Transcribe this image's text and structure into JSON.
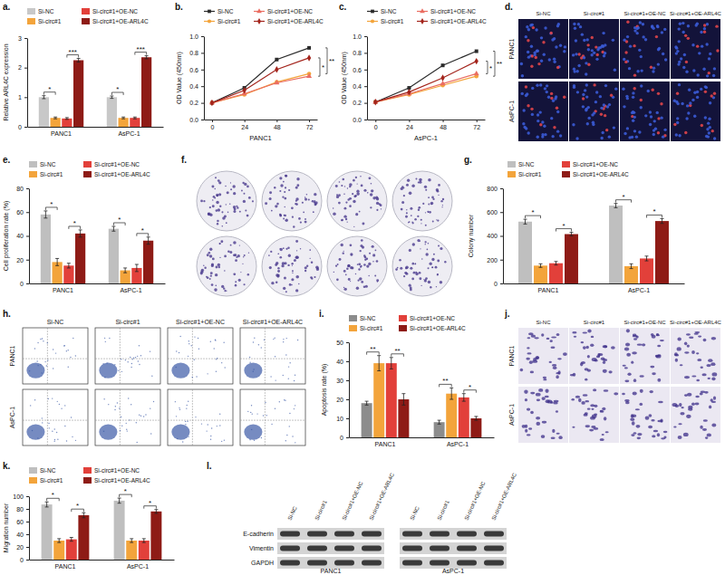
{
  "chart_data": [
    {
      "type": "bar",
      "title": "a.",
      "y_label": "Relative ARL4C expression",
      "categories": [
        "PANC1",
        "AsPC-1"
      ],
      "series": [
        {
          "name": "Si-NC",
          "color": "#c8c8c8",
          "values": [
            1.0,
            1.0
          ],
          "errors": [
            0.05,
            0.04
          ]
        },
        {
          "name": "Si-circ#1",
          "color": "#f3a43b",
          "values": [
            0.3,
            0.3
          ],
          "errors": [
            0.03,
            0.03
          ]
        },
        {
          "name": "Si-circ#1+OE-NC",
          "color": "#e2403a",
          "values": [
            0.28,
            0.3
          ],
          "errors": [
            0.03,
            0.03
          ]
        },
        {
          "name": "Si-circ#1+OE-ARL4C",
          "color": "#8e1b16",
          "values": [
            2.25,
            2.35
          ],
          "errors": [
            0.06,
            0.05
          ]
        }
      ],
      "ylim": [
        0,
        3
      ],
      "yticks": [
        0,
        1,
        2,
        3
      ],
      "legend": "top",
      "annotations": [
        {
          "text": "*",
          "category": "PANC1",
          "pair": [
            "Si-NC",
            "Si-circ#1"
          ]
        },
        {
          "text": "***",
          "category": "PANC1",
          "pair": [
            "Si-circ#1+OE-NC",
            "Si-circ#1+OE-ARL4C"
          ]
        },
        {
          "text": "*",
          "category": "AsPC-1",
          "pair": [
            "Si-NC",
            "Si-circ#1"
          ]
        },
        {
          "text": "***",
          "category": "AsPC-1",
          "pair": [
            "Si-circ#1+OE-NC",
            "Si-circ#1+OE-ARL4C"
          ]
        }
      ]
    },
    {
      "type": "line",
      "title": "b.",
      "y_label": "OD Value (450nm)",
      "x_label": "PANC1",
      "x": [
        0,
        24,
        48,
        72
      ],
      "xlim": [
        -6,
        78
      ],
      "xticks": [
        0,
        24,
        48,
        72
      ],
      "ylim": [
        0,
        1
      ],
      "yticks": [
        {
          "value": 0,
          "label": "0.0"
        },
        0.2,
        0.4,
        0.6,
        0.8,
        {
          "value": 1,
          "label": "1.0"
        }
      ],
      "series": [
        {
          "name": "Si-NC",
          "color": "#2b2b2b",
          "marker": "square",
          "values": [
            0.2,
            0.38,
            0.72,
            0.86
          ]
        },
        {
          "name": "Si-circ#1",
          "color": "#f3a43b",
          "marker": "circle",
          "values": [
            0.2,
            0.3,
            0.45,
            0.55
          ]
        },
        {
          "name": "Si-circ#1+OE-NC",
          "color": "#ea6d62",
          "marker": "triangle",
          "values": [
            0.2,
            0.31,
            0.44,
            0.52
          ]
        },
        {
          "name": "Si-circ#1+OE-ARL4C",
          "color": "#a3241c",
          "marker": "diamond",
          "values": [
            0.2,
            0.35,
            0.6,
            0.74
          ]
        }
      ],
      "legend": "top",
      "annotations": [
        {
          "text": "**",
          "pair": [
            "Si-NC",
            "Si-circ#1"
          ]
        },
        {
          "text": "*",
          "pair": [
            "Si-circ#1+OE-NC",
            "Si-circ#1+OE-ARL4C"
          ]
        }
      ]
    },
    {
      "type": "line",
      "title": "c.",
      "y_label": "OD Value (450nm)",
      "x_label": "AsPC-1",
      "x": [
        0,
        24,
        48,
        72
      ],
      "xlim": [
        -6,
        78
      ],
      "xticks": [
        0,
        24,
        48,
        72
      ],
      "ylim": [
        0,
        1
      ],
      "yticks": [
        {
          "value": 0,
          "label": "0.0"
        },
        0.2,
        0.4,
        0.6,
        0.8,
        {
          "value": 1,
          "label": "1.0"
        }
      ],
      "series": [
        {
          "name": "Si-NC",
          "color": "#2b2b2b",
          "marker": "square",
          "values": [
            0.21,
            0.38,
            0.65,
            0.82
          ]
        },
        {
          "name": "Si-circ#1",
          "color": "#f3a43b",
          "marker": "circle",
          "values": [
            0.21,
            0.3,
            0.41,
            0.52
          ]
        },
        {
          "name": "Si-circ#1+OE-NC",
          "color": "#ea6d62",
          "marker": "triangle",
          "values": [
            0.21,
            0.31,
            0.43,
            0.55
          ]
        },
        {
          "name": "Si-circ#1+OE-ARL4C",
          "color": "#a3241c",
          "marker": "diamond",
          "values": [
            0.21,
            0.33,
            0.5,
            0.7
          ]
        }
      ],
      "legend": "top",
      "annotations": [
        {
          "text": "**",
          "pair": [
            "Si-NC",
            "Si-circ#1"
          ]
        },
        {
          "text": "*",
          "pair": [
            "Si-circ#1+OE-NC",
            "Si-circ#1+OE-ARL4C"
          ]
        }
      ]
    },
    {
      "type": "bar",
      "title": "e.",
      "y_label": "Cell proliferation rate (%)",
      "categories": [
        "PANC1",
        "AsPC-1"
      ],
      "series": [
        {
          "name": "Si-NC",
          "color": "#bfbfbf",
          "values": [
            58,
            46
          ],
          "errors": [
            3,
            2
          ]
        },
        {
          "name": "Si-circ#1",
          "color": "#f3a43b",
          "values": [
            18,
            11
          ],
          "errors": [
            3,
            2
          ]
        },
        {
          "name": "Si-circ#1+OE-NC",
          "color": "#e2403a",
          "values": [
            15,
            13
          ],
          "errors": [
            2,
            3
          ]
        },
        {
          "name": "Si-circ#1+OE-ARL4C",
          "color": "#8e1b16",
          "values": [
            42,
            36
          ],
          "errors": [
            3,
            3
          ]
        }
      ],
      "ylim": [
        0,
        80
      ],
      "yticks": [
        0,
        20,
        40,
        60,
        80
      ],
      "legend": "top",
      "annotations": [
        {
          "text": "*",
          "category": "PANC1",
          "pair": [
            "Si-NC",
            "Si-circ#1"
          ]
        },
        {
          "text": "*",
          "category": "PANC1",
          "pair": [
            "Si-circ#1+OE-NC",
            "Si-circ#1+OE-ARL4C"
          ]
        },
        {
          "text": "*",
          "category": "AsPC-1",
          "pair": [
            "Si-NC",
            "Si-circ#1"
          ]
        },
        {
          "text": "*",
          "category": "AsPC-1",
          "pair": [
            "Si-circ#1+OE-NC",
            "Si-circ#1+OE-ARL4C"
          ]
        }
      ]
    },
    {
      "type": "bar",
      "title": "g.",
      "y_label": "Colony number",
      "categories": [
        "PANC1",
        "AsPC-1"
      ],
      "series": [
        {
          "name": "Si-NC",
          "color": "#bfbfbf",
          "values": [
            520,
            655
          ],
          "errors": [
            20,
            18
          ]
        },
        {
          "name": "Si-circ#1",
          "color": "#f3a43b",
          "values": [
            150,
            145
          ],
          "errors": [
            15,
            20
          ]
        },
        {
          "name": "Si-circ#1+OE-NC",
          "color": "#e2403a",
          "values": [
            170,
            210
          ],
          "errors": [
            15,
            20
          ]
        },
        {
          "name": "Si-circ#1+OE-ARL4C",
          "color": "#8e1b16",
          "values": [
            415,
            525
          ],
          "errors": [
            15,
            20
          ]
        }
      ],
      "ylim": [
        0,
        800
      ],
      "yticks": [
        0,
        200,
        400,
        600,
        800
      ],
      "legend": "top",
      "annotations": [
        {
          "text": "*",
          "category": "PANC1",
          "pair": [
            "Si-NC",
            "Si-circ#1"
          ]
        },
        {
          "text": "*",
          "category": "PANC1",
          "pair": [
            "Si-circ#1+OE-NC",
            "Si-circ#1+OE-ARL4C"
          ]
        },
        {
          "text": "*",
          "category": "AsPC-1",
          "pair": [
            "Si-NC",
            "Si-circ#1"
          ]
        },
        {
          "text": "*",
          "category": "AsPC-1",
          "pair": [
            "Si-circ#1+OE-NC",
            "Si-circ#1+OE-ARL4C"
          ]
        }
      ]
    },
    {
      "type": "bar",
      "title": "i.",
      "y_label": "Apoptosis rate (%)",
      "categories": [
        "PANC1",
        "AsPC-1"
      ],
      "series": [
        {
          "name": "Si-NC",
          "color": "#8c8c8c",
          "values": [
            18,
            8
          ],
          "errors": [
            1,
            1
          ]
        },
        {
          "name": "Si-circ#1",
          "color": "#f3a43b",
          "values": [
            39,
            23
          ],
          "errors": [
            4,
            3
          ]
        },
        {
          "name": "Si-circ#1+OE-NC",
          "color": "#e2403a",
          "values": [
            39,
            21
          ],
          "errors": [
            3,
            2
          ]
        },
        {
          "name": "Si-circ#1+OE-ARL4C",
          "color": "#8e1b16",
          "values": [
            20,
            10
          ],
          "errors": [
            3,
            1
          ]
        }
      ],
      "ylim": [
        0,
        50
      ],
      "yticks": [
        0,
        10,
        20,
        30,
        40,
        50
      ],
      "legend": "top",
      "annotations": [
        {
          "text": "**",
          "category": "PANC1",
          "pair": [
            "Si-NC",
            "Si-circ#1"
          ]
        },
        {
          "text": "**",
          "category": "PANC1",
          "pair": [
            "Si-circ#1+OE-NC",
            "Si-circ#1+OE-ARL4C"
          ]
        },
        {
          "text": "**",
          "category": "AsPC-1",
          "pair": [
            "Si-NC",
            "Si-circ#1"
          ]
        },
        {
          "text": "*",
          "category": "AsPC-1",
          "pair": [
            "Si-circ#1+OE-NC",
            "Si-circ#1+OE-ARL4C"
          ]
        }
      ]
    },
    {
      "type": "bar",
      "title": "k.",
      "y_label": "Migration number",
      "categories": [
        "PANC1",
        "AsPC-1"
      ],
      "series": [
        {
          "name": "Si-NC",
          "color": "#bfbfbf",
          "values": [
            87,
            93
          ],
          "errors": [
            4,
            4
          ]
        },
        {
          "name": "Si-circ#1",
          "color": "#f3a43b",
          "values": [
            30,
            30
          ],
          "errors": [
            3,
            3
          ]
        },
        {
          "name": "Si-circ#1+OE-NC",
          "color": "#e2403a",
          "values": [
            32,
            30
          ],
          "errors": [
            3,
            3
          ]
        },
        {
          "name": "Si-circ#1+OE-ARL4C",
          "color": "#8e1b16",
          "values": [
            70,
            76
          ],
          "errors": [
            4,
            3
          ]
        }
      ],
      "ylim": [
        0,
        100
      ],
      "yticks": [
        0,
        20,
        40,
        60,
        80,
        100
      ],
      "legend": "top",
      "annotations": [
        {
          "text": "*",
          "category": "PANC1",
          "pair": [
            "Si-NC",
            "Si-circ#1"
          ]
        },
        {
          "text": "*",
          "category": "PANC1",
          "pair": [
            "Si-circ#1+OE-NC",
            "Si-circ#1+OE-ARL4C"
          ]
        },
        {
          "text": "*",
          "category": "AsPC-1",
          "pair": [
            "Si-NC",
            "Si-circ#1"
          ]
        },
        {
          "text": "*",
          "category": "AsPC-1",
          "pair": [
            "Si-circ#1+OE-NC",
            "Si-circ#1+OE-ARL4C"
          ]
        }
      ]
    }
  ],
  "fluorescence": {
    "title": "d.",
    "columns": [
      "Si-NC",
      "Si-circ#1",
      "Si-circ#1+OE-NC",
      "Si-circ#1+OE-ARL4C"
    ],
    "rows": [
      "PANC1",
      "AsPC-1"
    ]
  },
  "colony_plates": {
    "title": "f."
  },
  "flow_cytometry": {
    "title": "h.",
    "columns": [
      "Si-NC",
      "Si-circ#1",
      "Si-circ#1+OE-NC",
      "Si-circ#1+OE-ARL4C"
    ],
    "rows": [
      "PANC1",
      "AsPC-1"
    ]
  },
  "transwell": {
    "title": "j.",
    "columns": [
      "Si-NC",
      "Si-circ#1",
      "Si-circ#1+OE-NC",
      "Si-circ#1+OE-ARL4C"
    ],
    "rows": [
      "PANC1",
      "AsPC-1"
    ]
  },
  "western_blot": {
    "title": "l.",
    "lanes": [
      "Si-NC",
      "Si-circ#1",
      "Si-circ#1+OE-NC",
      "Si-circ#1+OE-ARL4C"
    ],
    "groups": [
      "PANC1",
      "AsPC-1"
    ],
    "proteins": [
      "E-cadherin",
      "Vimentin",
      "GAPDH"
    ]
  }
}
